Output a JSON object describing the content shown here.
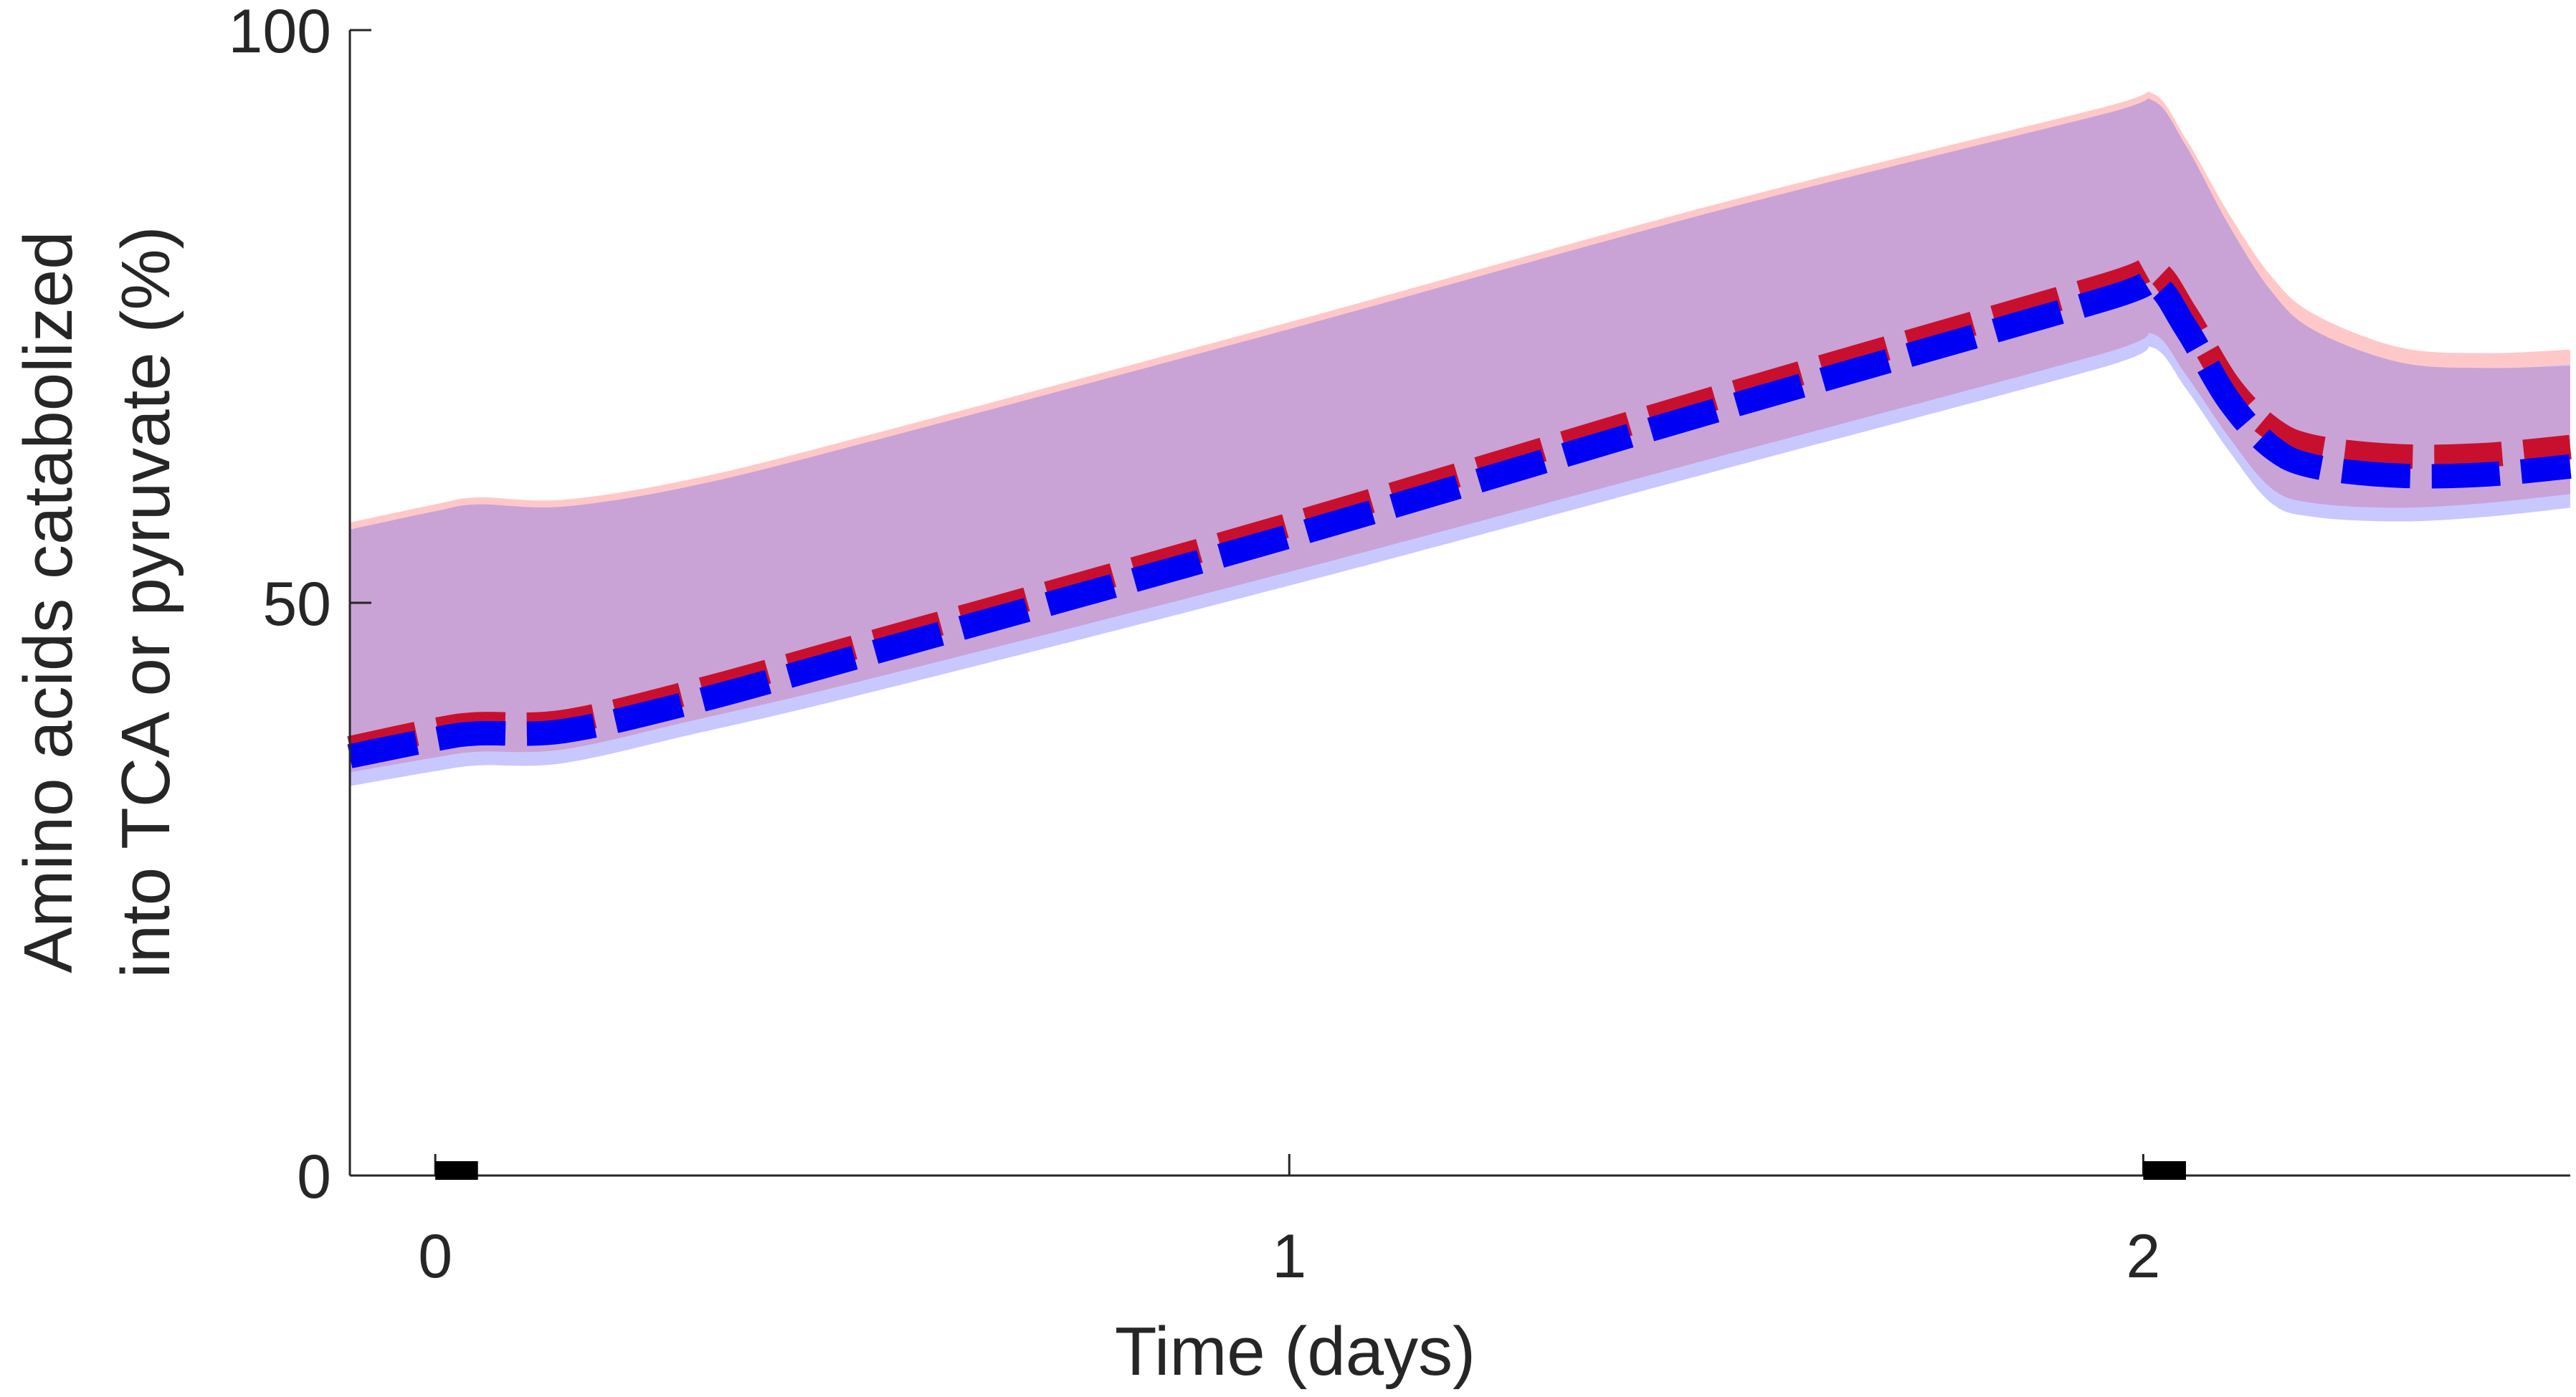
{
  "chart_data": {
    "type": "line",
    "title": "",
    "xlabel": "Time (days)",
    "ylabel_lines": [
      "Amino acids catabolized",
      "into TCA or pyruvate (%)"
    ],
    "xlim": [
      -0.1,
      2.5
    ],
    "ylim": [
      0,
      100
    ],
    "xticks": [
      0,
      1,
      2
    ],
    "yticks": [
      0,
      50,
      100
    ],
    "xtick_labels": [
      "0",
      "1",
      "2"
    ],
    "ytick_labels": [
      "0",
      "50",
      "100"
    ],
    "grid": false,
    "legend": "none",
    "feeding_markers": [
      {
        "start": 0.0,
        "end": 0.05
      },
      {
        "start": 2.0,
        "end": 2.05
      }
    ],
    "bands": [
      {
        "color": "#ffc8c8",
        "upper": [
          [
            -0.1,
            57.0
          ],
          [
            0.0,
            58.6
          ],
          [
            0.05,
            59.2
          ],
          [
            0.15,
            59.0
          ],
          [
            0.3,
            60.8
          ],
          [
            0.5,
            64.5
          ],
          [
            1.0,
            74.5
          ],
          [
            1.5,
            84.8
          ],
          [
            1.95,
            93.2
          ],
          [
            2.01,
            94.5
          ],
          [
            2.05,
            90.5
          ],
          [
            2.1,
            84.0
          ],
          [
            2.15,
            78.5
          ],
          [
            2.2,
            75.2
          ],
          [
            2.3,
            72.3
          ],
          [
            2.4,
            71.8
          ],
          [
            2.5,
            72.1
          ]
        ],
        "lower": [
          [
            -0.1,
            34.5
          ],
          [
            0.0,
            35.8
          ],
          [
            0.05,
            36.3
          ],
          [
            0.15,
            36.5
          ],
          [
            0.3,
            39.0
          ],
          [
            0.5,
            42.5
          ],
          [
            1.0,
            52.0
          ],
          [
            1.5,
            62.0
          ],
          [
            1.95,
            71.0
          ],
          [
            2.01,
            72.8
          ],
          [
            2.05,
            69.2
          ],
          [
            2.1,
            63.8
          ],
          [
            2.15,
            59.2
          ],
          [
            2.2,
            58.0
          ],
          [
            2.3,
            57.6
          ],
          [
            2.4,
            58.0
          ],
          [
            2.5,
            58.8
          ]
        ]
      },
      {
        "color": "#c8c8ff",
        "upper": [
          [
            -0.1,
            56.0
          ],
          [
            0.0,
            57.5
          ],
          [
            0.05,
            58.2
          ],
          [
            0.15,
            58.0
          ],
          [
            0.3,
            59.8
          ],
          [
            0.5,
            63.5
          ],
          [
            1.0,
            73.5
          ],
          [
            1.5,
            83.8
          ],
          [
            1.95,
            92.2
          ],
          [
            2.01,
            93.5
          ],
          [
            2.05,
            89.5
          ],
          [
            2.1,
            82.5
          ],
          [
            2.15,
            76.5
          ],
          [
            2.2,
            73.0
          ],
          [
            2.3,
            70.6
          ],
          [
            2.4,
            70.4
          ],
          [
            2.5,
            70.8
          ]
        ],
        "lower": [
          [
            -0.1,
            34.0
          ],
          [
            0.0,
            35.3
          ],
          [
            0.05,
            35.8
          ],
          [
            0.15,
            36.0
          ],
          [
            0.3,
            38.5
          ],
          [
            0.5,
            42.0
          ],
          [
            1.0,
            51.5
          ],
          [
            1.5,
            61.5
          ],
          [
            1.95,
            70.5
          ],
          [
            2.01,
            72.3
          ],
          [
            2.05,
            68.7
          ],
          [
            2.1,
            63.3
          ],
          [
            2.15,
            58.7
          ],
          [
            2.2,
            57.5
          ],
          [
            2.3,
            57.1
          ],
          [
            2.4,
            57.5
          ],
          [
            2.5,
            58.3
          ]
        ]
      },
      {
        "color": "#c9a3d6",
        "upper": [
          [
            -0.1,
            56.4
          ],
          [
            0.0,
            58.0
          ],
          [
            0.05,
            58.6
          ],
          [
            0.15,
            58.4
          ],
          [
            0.3,
            60.2
          ],
          [
            0.5,
            63.9
          ],
          [
            1.0,
            73.9
          ],
          [
            1.5,
            84.2
          ],
          [
            1.95,
            92.6
          ],
          [
            2.01,
            93.9
          ],
          [
            2.05,
            89.9
          ],
          [
            2.1,
            83.0
          ],
          [
            2.15,
            77.2
          ],
          [
            2.2,
            73.8
          ],
          [
            2.3,
            71.0
          ],
          [
            2.4,
            70.5
          ],
          [
            2.5,
            70.7
          ]
        ],
        "lower": [
          [
            -0.1,
            35.2
          ],
          [
            0.0,
            36.5
          ],
          [
            0.05,
            37.0
          ],
          [
            0.15,
            37.2
          ],
          [
            0.3,
            39.7
          ],
          [
            0.5,
            43.2
          ],
          [
            1.0,
            52.7
          ],
          [
            1.5,
            62.7
          ],
          [
            1.95,
            71.7
          ],
          [
            2.01,
            73.5
          ],
          [
            2.05,
            69.9
          ],
          [
            2.1,
            64.5
          ],
          [
            2.15,
            60.0
          ],
          [
            2.2,
            58.7
          ],
          [
            2.3,
            58.3
          ],
          [
            2.4,
            58.7
          ],
          [
            2.5,
            59.5
          ]
        ]
      }
    ],
    "series": [
      {
        "color": "#c8102e",
        "style": "dashed",
        "points": [
          [
            -0.1,
            37.3
          ],
          [
            0.0,
            38.9
          ],
          [
            0.05,
            39.4
          ],
          [
            0.15,
            39.6
          ],
          [
            0.3,
            42.2
          ],
          [
            0.5,
            46.3
          ],
          [
            1.0,
            56.8
          ],
          [
            1.5,
            67.9
          ],
          [
            1.95,
            77.6
          ],
          [
            2.01,
            79.1
          ],
          [
            2.05,
            75.2
          ],
          [
            2.1,
            69.0
          ],
          [
            2.15,
            65.2
          ],
          [
            2.2,
            63.6
          ],
          [
            2.3,
            62.8
          ],
          [
            2.4,
            62.9
          ],
          [
            2.5,
            63.6
          ]
        ]
      },
      {
        "color": "#0000f5",
        "style": "dashed",
        "points": [
          [
            -0.1,
            36.6
          ],
          [
            0.0,
            38.1
          ],
          [
            0.05,
            38.6
          ],
          [
            0.15,
            38.8
          ],
          [
            0.3,
            41.3
          ],
          [
            0.5,
            45.4
          ],
          [
            1.0,
            55.8
          ],
          [
            1.5,
            66.8
          ],
          [
            1.95,
            76.4
          ],
          [
            2.01,
            77.9
          ],
          [
            2.05,
            74.0
          ],
          [
            2.1,
            67.7
          ],
          [
            2.15,
            63.6
          ],
          [
            2.2,
            61.9
          ],
          [
            2.3,
            61.1
          ],
          [
            2.4,
            61.2
          ],
          [
            2.5,
            61.9
          ]
        ]
      }
    ]
  }
}
